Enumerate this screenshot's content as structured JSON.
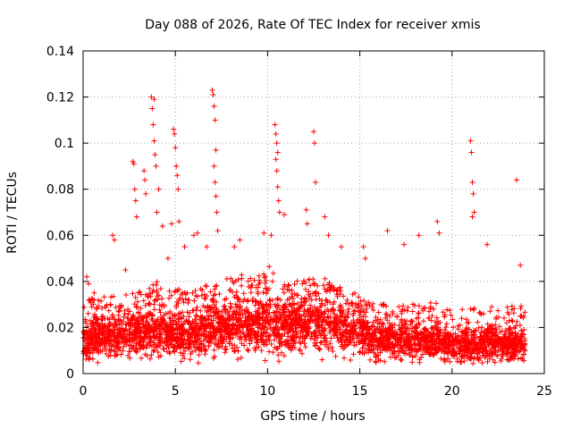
{
  "chart_data": {
    "type": "scatter",
    "title": "Day 088 of 2026, Rate Of TEC Index for receiver xmis",
    "xlabel": "GPS time / hours",
    "ylabel": "ROTI / TECUs",
    "xlim": [
      0,
      25
    ],
    "ylim": [
      0,
      0.14
    ],
    "xticks": [
      0,
      5,
      10,
      15,
      20,
      25
    ],
    "yticks": [
      0,
      0.02,
      0.04,
      0.06,
      0.08,
      0.1,
      0.12,
      0.14
    ],
    "ytick_labels": [
      "0",
      "0.02",
      "0.04",
      "0.06",
      "0.08",
      "0.1",
      "0.12",
      "0.14"
    ],
    "grid": true,
    "marker": "plus",
    "marker_color": "#ff0000",
    "dense_series_envelope": {
      "x": [
        0.0,
        1.0,
        2.0,
        3.0,
        4.0,
        5.0,
        6.0,
        7.0,
        8.0,
        9.0,
        10.0,
        11.0,
        12.0,
        13.0,
        14.0,
        15.0,
        16.0,
        17.0,
        18.0,
        19.0,
        20.0,
        21.0,
        22.0,
        23.0,
        24.0
      ],
      "typical": [
        0.013,
        0.016,
        0.016,
        0.017,
        0.019,
        0.016,
        0.016,
        0.018,
        0.02,
        0.022,
        0.022,
        0.02,
        0.022,
        0.021,
        0.019,
        0.017,
        0.015,
        0.014,
        0.014,
        0.014,
        0.012,
        0.012,
        0.013,
        0.013,
        0.012
      ],
      "upper": [
        0.03,
        0.032,
        0.032,
        0.034,
        0.038,
        0.035,
        0.034,
        0.038,
        0.04,
        0.042,
        0.045,
        0.038,
        0.042,
        0.04,
        0.036,
        0.033,
        0.03,
        0.028,
        0.029,
        0.03,
        0.026,
        0.027,
        0.028,
        0.028,
        0.028
      ]
    },
    "outliers": [
      {
        "x": 0.2,
        "y": 0.042
      },
      {
        "x": 0.3,
        "y": 0.039
      },
      {
        "x": 0.6,
        "y": 0.035
      },
      {
        "x": 1.6,
        "y": 0.06
      },
      {
        "x": 1.7,
        "y": 0.058
      },
      {
        "x": 2.3,
        "y": 0.045
      },
      {
        "x": 2.7,
        "y": 0.092
      },
      {
        "x": 2.75,
        "y": 0.091
      },
      {
        "x": 2.8,
        "y": 0.08
      },
      {
        "x": 2.85,
        "y": 0.075
      },
      {
        "x": 2.9,
        "y": 0.068
      },
      {
        "x": 3.3,
        "y": 0.088
      },
      {
        "x": 3.35,
        "y": 0.084
      },
      {
        "x": 3.4,
        "y": 0.078
      },
      {
        "x": 3.7,
        "y": 0.12
      },
      {
        "x": 3.75,
        "y": 0.115
      },
      {
        "x": 3.8,
        "y": 0.108
      },
      {
        "x": 3.85,
        "y": 0.101
      },
      {
        "x": 3.9,
        "y": 0.095
      },
      {
        "x": 3.95,
        "y": 0.09
      },
      {
        "x": 3.85,
        "y": 0.119
      },
      {
        "x": 4.0,
        "y": 0.07
      },
      {
        "x": 4.1,
        "y": 0.08
      },
      {
        "x": 4.3,
        "y": 0.064
      },
      {
        "x": 4.6,
        "y": 0.05
      },
      {
        "x": 4.8,
        "y": 0.065
      },
      {
        "x": 4.9,
        "y": 0.106
      },
      {
        "x": 4.95,
        "y": 0.104
      },
      {
        "x": 5.0,
        "y": 0.098
      },
      {
        "x": 5.05,
        "y": 0.09
      },
      {
        "x": 5.1,
        "y": 0.086
      },
      {
        "x": 5.15,
        "y": 0.08
      },
      {
        "x": 5.2,
        "y": 0.066
      },
      {
        "x": 5.5,
        "y": 0.055
      },
      {
        "x": 6.0,
        "y": 0.06
      },
      {
        "x": 6.2,
        "y": 0.061
      },
      {
        "x": 6.7,
        "y": 0.055
      },
      {
        "x": 7.0,
        "y": 0.123
      },
      {
        "x": 7.05,
        "y": 0.121
      },
      {
        "x": 7.1,
        "y": 0.116
      },
      {
        "x": 7.15,
        "y": 0.11
      },
      {
        "x": 7.2,
        "y": 0.097
      },
      {
        "x": 7.1,
        "y": 0.09
      },
      {
        "x": 7.15,
        "y": 0.083
      },
      {
        "x": 7.2,
        "y": 0.077
      },
      {
        "x": 7.25,
        "y": 0.07
      },
      {
        "x": 7.3,
        "y": 0.062
      },
      {
        "x": 8.2,
        "y": 0.055
      },
      {
        "x": 8.5,
        "y": 0.058
      },
      {
        "x": 9.8,
        "y": 0.061
      },
      {
        "x": 10.2,
        "y": 0.06
      },
      {
        "x": 10.4,
        "y": 0.108
      },
      {
        "x": 10.45,
        "y": 0.104
      },
      {
        "x": 10.5,
        "y": 0.1
      },
      {
        "x": 10.55,
        "y": 0.096
      },
      {
        "x": 10.45,
        "y": 0.093
      },
      {
        "x": 10.5,
        "y": 0.088
      },
      {
        "x": 10.55,
        "y": 0.081
      },
      {
        "x": 10.6,
        "y": 0.075
      },
      {
        "x": 10.65,
        "y": 0.07
      },
      {
        "x": 10.9,
        "y": 0.069
      },
      {
        "x": 12.1,
        "y": 0.071
      },
      {
        "x": 12.15,
        "y": 0.065
      },
      {
        "x": 12.5,
        "y": 0.105
      },
      {
        "x": 12.55,
        "y": 0.1
      },
      {
        "x": 12.6,
        "y": 0.083
      },
      {
        "x": 13.1,
        "y": 0.068
      },
      {
        "x": 13.3,
        "y": 0.06
      },
      {
        "x": 14.0,
        "y": 0.055
      },
      {
        "x": 15.2,
        "y": 0.055
      },
      {
        "x": 15.3,
        "y": 0.05
      },
      {
        "x": 16.5,
        "y": 0.062
      },
      {
        "x": 17.4,
        "y": 0.056
      },
      {
        "x": 18.2,
        "y": 0.06
      },
      {
        "x": 19.2,
        "y": 0.066
      },
      {
        "x": 19.3,
        "y": 0.061
      },
      {
        "x": 21.0,
        "y": 0.101
      },
      {
        "x": 21.05,
        "y": 0.096
      },
      {
        "x": 21.1,
        "y": 0.083
      },
      {
        "x": 21.15,
        "y": 0.078
      },
      {
        "x": 21.2,
        "y": 0.07
      },
      {
        "x": 21.1,
        "y": 0.068
      },
      {
        "x": 21.9,
        "y": 0.056
      },
      {
        "x": 23.5,
        "y": 0.084
      },
      {
        "x": 23.7,
        "y": 0.047
      }
    ]
  }
}
